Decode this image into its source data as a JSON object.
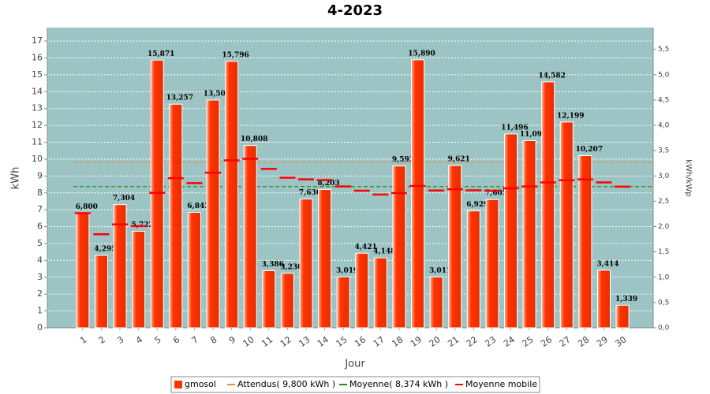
{
  "chart_data": {
    "type": "bar",
    "title": "4-2023",
    "x_label": "Jour",
    "y_label": "kWh",
    "y2_label": "kWh/kWp",
    "categories": [
      "1",
      "2",
      "3",
      "4",
      "5",
      "6",
      "7",
      "8",
      "9",
      "10",
      "11",
      "12",
      "13",
      "14",
      "15",
      "16",
      "17",
      "18",
      "19",
      "20",
      "21",
      "22",
      "23",
      "24",
      "25",
      "26",
      "27",
      "28",
      "29",
      "30"
    ],
    "ylim": [
      0,
      17.8
    ],
    "yticks": [
      0,
      1,
      2,
      3,
      4,
      5,
      6,
      7,
      8,
      9,
      10,
      11,
      12,
      13,
      14,
      15,
      16,
      17
    ],
    "y2lim": [
      0,
      5.93
    ],
    "y2ticks": [
      {
        "value": 0,
        "label": "0,0"
      },
      {
        "value": 0.5,
        "label": "0,5"
      },
      {
        "value": 1,
        "label": "1,0"
      },
      {
        "value": 1.5,
        "label": "1,5"
      },
      {
        "value": 2,
        "label": "2,0"
      },
      {
        "value": 2.5,
        "label": "2,5"
      },
      {
        "value": 3,
        "label": "3,0"
      },
      {
        "value": 3.5,
        "label": "3,5"
      },
      {
        "value": 4,
        "label": "4,0"
      },
      {
        "value": 4.5,
        "label": "4,5"
      },
      {
        "value": 5,
        "label": "5,0"
      },
      {
        "value": 5.5,
        "label": "5,5"
      }
    ],
    "grid": true,
    "legend": "bottom",
    "series": [
      {
        "name": "gmosol",
        "type": "bar",
        "color": "#ff3300",
        "values": [
          6.8,
          4.295,
          7.304,
          5.722,
          15.871,
          13.257,
          6.843,
          13.503,
          15.796,
          10.808,
          3.386,
          3.23,
          7.636,
          8.203,
          3.019,
          4.421,
          4.148,
          9.593,
          15.89,
          3.011,
          9.621,
          6.929,
          7.605,
          11.496,
          11.097,
          14.582,
          12.199,
          10.207,
          3.414,
          1.339
        ],
        "value_labels": [
          "6,800",
          "4,295",
          "7,304",
          "5,722",
          "15,871",
          "13,257",
          "6,843",
          "13,503",
          "15,796",
          "10,808",
          "3,386",
          "3,230",
          "7,636",
          "8,203",
          "3,019",
          "4,421",
          "4,148",
          "9,593",
          "15,890",
          "3,011",
          "9,621",
          "6,929",
          "7,605",
          "11,496",
          "11,097",
          "14,582",
          "12,199",
          "10,207",
          "3,414",
          "1,339"
        ]
      },
      {
        "name": "Attendus( 9,800 kWh )",
        "type": "hline",
        "color": "#e8903a",
        "value": 9.8
      },
      {
        "name": "Moyenne( 8,374 kWh )",
        "type": "hline",
        "color": "#1f8f1f",
        "value": 8.374
      },
      {
        "name": "Moyenne mobile",
        "type": "marker",
        "color": "#ff0000",
        "values": [
          6.8,
          5.55,
          6.13,
          6.03,
          8.0,
          8.87,
          8.58,
          9.2,
          9.93,
          10.02,
          9.42,
          8.9,
          8.8,
          8.76,
          8.38,
          8.13,
          7.9,
          7.99,
          8.41,
          8.14,
          8.21,
          8.15,
          8.13,
          8.27,
          8.38,
          8.62,
          8.75,
          8.8,
          8.62,
          8.37
        ]
      }
    ]
  }
}
